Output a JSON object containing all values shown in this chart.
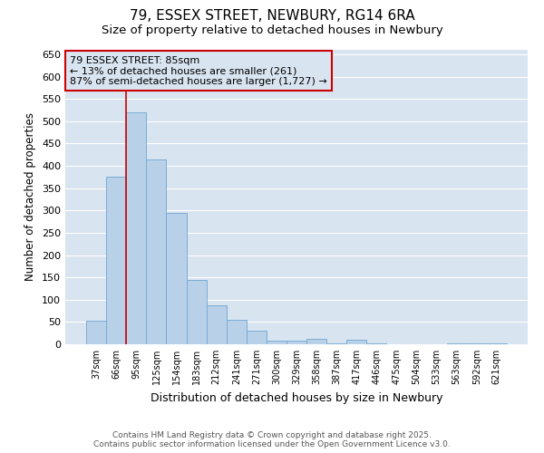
{
  "title": "79, ESSEX STREET, NEWBURY, RG14 6RA",
  "subtitle": "Size of property relative to detached houses in Newbury",
  "xlabel": "Distribution of detached houses by size in Newbury",
  "ylabel": "Number of detached properties",
  "categories": [
    "37sqm",
    "66sqm",
    "95sqm",
    "125sqm",
    "154sqm",
    "183sqm",
    "212sqm",
    "241sqm",
    "271sqm",
    "300sqm",
    "329sqm",
    "358sqm",
    "387sqm",
    "417sqm",
    "446sqm",
    "475sqm",
    "504sqm",
    "533sqm",
    "563sqm",
    "592sqm",
    "621sqm"
  ],
  "values": [
    52,
    375,
    520,
    415,
    295,
    145,
    87,
    55,
    30,
    8,
    8,
    13,
    2,
    10,
    2,
    1,
    1,
    1,
    2,
    2,
    3
  ],
  "bar_color": "#b8d0e8",
  "bar_edge_color": "#7aadd4",
  "plot_bg_color": "#d8e4f0",
  "fig_bg_color": "#ffffff",
  "grid_color": "#ffffff",
  "annotation_box_edge_color": "#cc0000",
  "annotation_line_color": "#cc0000",
  "property_line_x": 2.0,
  "annotation_text_line1": "79 ESSEX STREET: 85sqm",
  "annotation_text_line2": "← 13% of detached houses are smaller (261)",
  "annotation_text_line3": "87% of semi-detached houses are larger (1,727) →",
  "ylim": [
    0,
    660
  ],
  "yticks": [
    0,
    50,
    100,
    150,
    200,
    250,
    300,
    350,
    400,
    450,
    500,
    550,
    600,
    650
  ],
  "footer_line1": "Contains HM Land Registry data © Crown copyright and database right 2025.",
  "footer_line2": "Contains public sector information licensed under the Open Government Licence v3.0."
}
